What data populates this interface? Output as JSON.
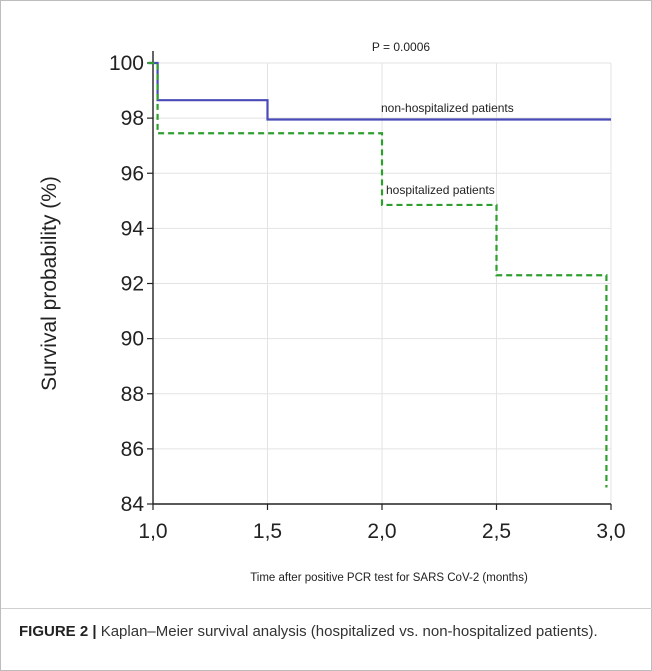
{
  "caption": {
    "label": "FIGURE 2 |",
    "text": " Kaplan–Meier survival analysis (hospitalized vs. non-hospitalized patients)."
  },
  "chart_data": {
    "type": "line",
    "step": true,
    "title": "P = 0.0006",
    "xlabel": "Time after positive PCR test for SARS CoV-2 (months)",
    "ylabel": "Survival probability (%)",
    "xlim": [
      1.0,
      3.0
    ],
    "ylim": [
      84,
      100
    ],
    "xticks": [
      "1,0",
      "1,5",
      "2,0",
      "2,5",
      "3,0"
    ],
    "yticks": [
      "84",
      "86",
      "88",
      "90",
      "92",
      "94",
      "96",
      "98",
      "100"
    ],
    "grid": true,
    "series": [
      {
        "name": "non-hospitalized patients",
        "color": "#4a4ab8",
        "dash": "solid",
        "x": [
          0.98,
          1.02,
          1.5,
          3.0
        ],
        "y": [
          100,
          98.65,
          97.95,
          97.95
        ]
      },
      {
        "name": "hospitalized patients",
        "color": "#2e9e2e",
        "dash": "dashed",
        "x": [
          0.98,
          1.02,
          2.0,
          2.5,
          2.98
        ],
        "y": [
          100,
          97.45,
          94.85,
          92.3,
          84.6
        ]
      }
    ]
  }
}
